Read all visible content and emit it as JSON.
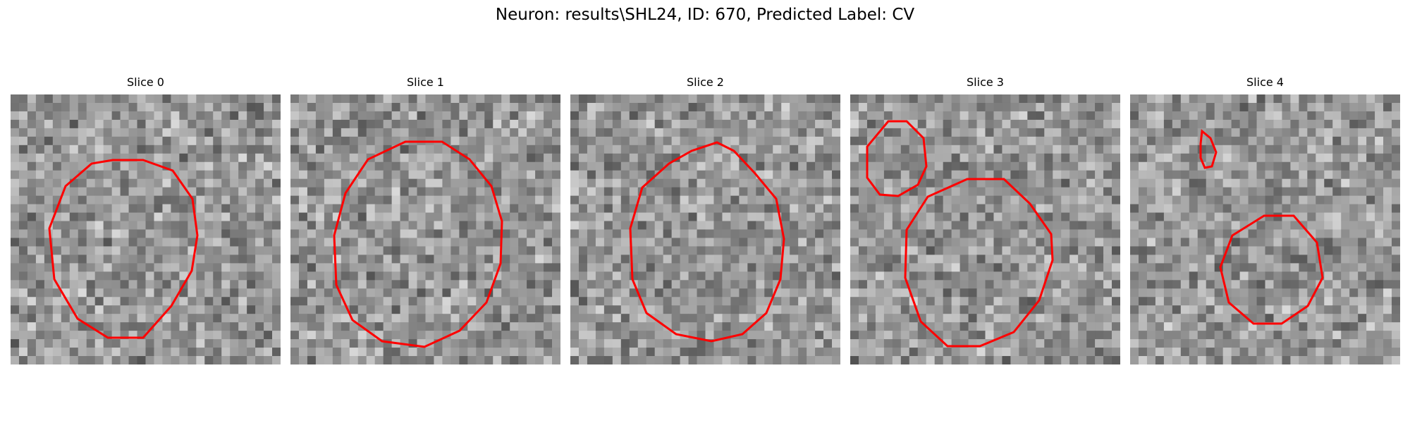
{
  "figure": {
    "title": "Neuron: results\\SHL24, ID: 670, Predicted Label: CV"
  },
  "panels": [
    {
      "title": "Slice 0"
    },
    {
      "title": "Slice 1"
    },
    {
      "title": "Slice 2"
    },
    {
      "title": "Slice 3"
    },
    {
      "title": "Slice 4"
    }
  ],
  "colors": {
    "contour": "#ff0000",
    "background": "#ffffff"
  }
}
